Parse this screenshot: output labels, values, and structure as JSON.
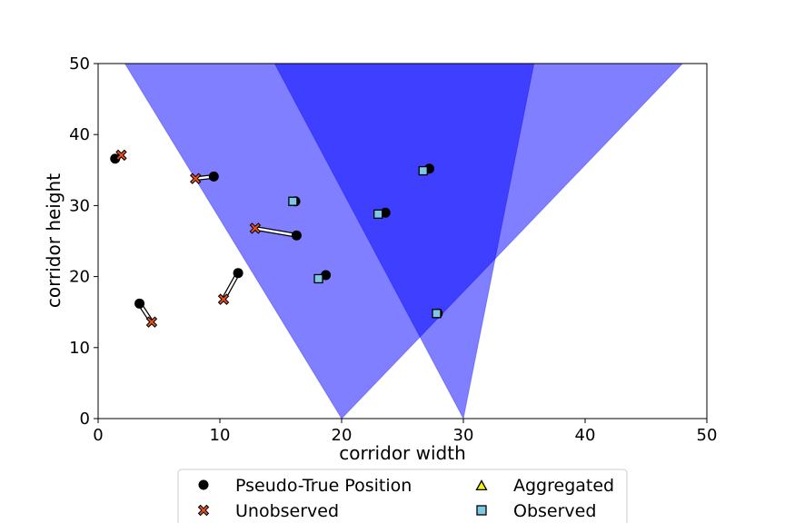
{
  "chart_data": {
    "type": "scatter",
    "title": "",
    "xlabel": "corridor width",
    "ylabel": "corridor height",
    "xlim": [
      0,
      50
    ],
    "ylim": [
      0,
      50
    ],
    "xticks": [
      "0",
      "10",
      "20",
      "30",
      "40",
      "50"
    ],
    "yticks": [
      "0",
      "10",
      "20",
      "30",
      "40",
      "50"
    ],
    "grid": false,
    "legend_position": "bottom-center",
    "legend": [
      {
        "label": "Pseudo-True Position",
        "marker": "circle",
        "color": "#000000"
      },
      {
        "label": "Unobserved",
        "marker": "x",
        "color": "#e8501e"
      },
      {
        "label": "Aggregated",
        "marker": "triangle",
        "color": "#f5f500"
      },
      {
        "label": "Observed",
        "marker": "square",
        "color": "#7ec8e3"
      }
    ],
    "sensor_cones": [
      {
        "apex": [
          20,
          0
        ],
        "left_top": [
          2.2,
          50
        ],
        "right_top": [
          48,
          50
        ],
        "color": "#0000ff",
        "opacity": 0.5
      },
      {
        "apex": [
          30,
          0
        ],
        "left_top": [
          14.5,
          50
        ],
        "right_top": [
          35.8,
          50
        ],
        "color": "#0000ff",
        "opacity": 0.5
      }
    ],
    "targets": [
      {
        "true": [
          1.4,
          36.6
        ],
        "est": [
          1.9,
          37.1
        ],
        "status": "Unobserved"
      },
      {
        "true": [
          9.5,
          34.1
        ],
        "est": [
          8.0,
          33.8
        ],
        "status": "Unobserved"
      },
      {
        "true": [
          16.3,
          25.8
        ],
        "est": [
          12.9,
          26.8
        ],
        "status": "Unobserved"
      },
      {
        "true": [
          11.5,
          20.5
        ],
        "est": [
          10.3,
          16.8
        ],
        "status": "Unobserved"
      },
      {
        "true": [
          3.4,
          16.2
        ],
        "est": [
          4.4,
          13.6
        ],
        "status": "Unobserved"
      },
      {
        "true": [
          16.2,
          30.6
        ],
        "est": [
          16.0,
          30.6
        ],
        "status": "Observed"
      },
      {
        "true": [
          18.7,
          20.2
        ],
        "est": [
          18.1,
          19.7
        ],
        "status": "Observed"
      },
      {
        "true": [
          23.6,
          29.0
        ],
        "est": [
          23.0,
          28.8
        ],
        "status": "Observed"
      },
      {
        "true": [
          27.2,
          35.2
        ],
        "est": [
          26.7,
          34.9
        ],
        "status": "Observed"
      },
      {
        "true": [
          27.9,
          14.8
        ],
        "est": [
          27.8,
          14.8
        ],
        "status": "Observed"
      }
    ]
  }
}
